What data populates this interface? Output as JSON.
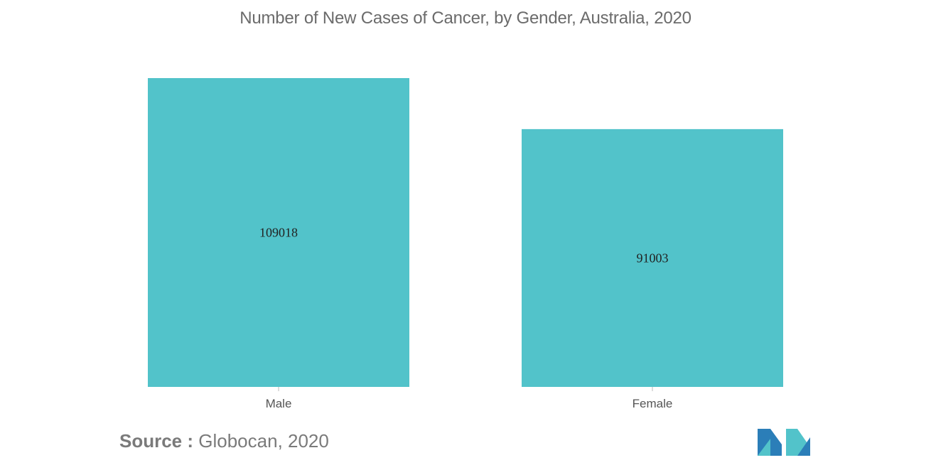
{
  "chart_data": {
    "type": "bar",
    "title": "Number of New Cases of Cancer, by Gender, Australia, 2020",
    "categories": [
      "Male",
      "Female"
    ],
    "values": [
      109018,
      91003
    ],
    "data_labels": [
      "109018",
      "91003"
    ],
    "xlabel": "",
    "ylabel": "",
    "ylim": [
      0,
      109018
    ],
    "grid": false,
    "legend": "none",
    "bar_color": "#52c3ca"
  },
  "source": {
    "label": "Source :",
    "text": "Globocan, 2020"
  },
  "logo": {
    "icon": "mordor-intelligence-logo-icon",
    "colors": [
      "#2b7eb8",
      "#52c3ca"
    ]
  }
}
